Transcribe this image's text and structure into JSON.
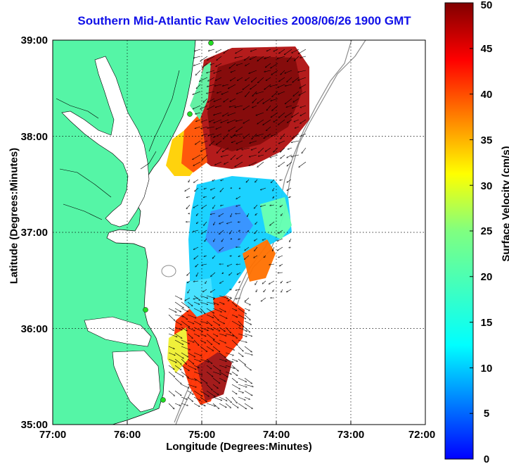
{
  "title": "Southern Mid-Atlantic Raw Velocities 2008/06/26 1900 GMT",
  "xlabel": "Longitude (Degrees:Minutes)",
  "ylabel": "Latitude (Degrees:Minutes)",
  "colorbar_label": "Surface Velocity (cm/s)",
  "x_ticks": [
    "77:00",
    "76:00",
    "75:00",
    "74:00",
    "73:00",
    "72:00"
  ],
  "y_ticks": [
    "39:00",
    "38:00",
    "37:00",
    "36:00",
    "35:00"
  ],
  "colorbar_ticks": [
    "50",
    "45",
    "40",
    "35",
    "30",
    "25",
    "20",
    "15",
    "10",
    "5",
    "0"
  ],
  "colors": {
    "title": "#1010e8",
    "land": "#55f5a6",
    "water": "#ffffff",
    "vectors": "#000000",
    "stations": "#22dd22"
  },
  "map": {
    "lon_range": [
      -77.0,
      -72.0
    ],
    "lat_range": [
      35.0,
      39.0
    ],
    "colorscale": "jet",
    "colorbar_range": [
      0,
      50
    ],
    "grid": "dotted"
  }
}
